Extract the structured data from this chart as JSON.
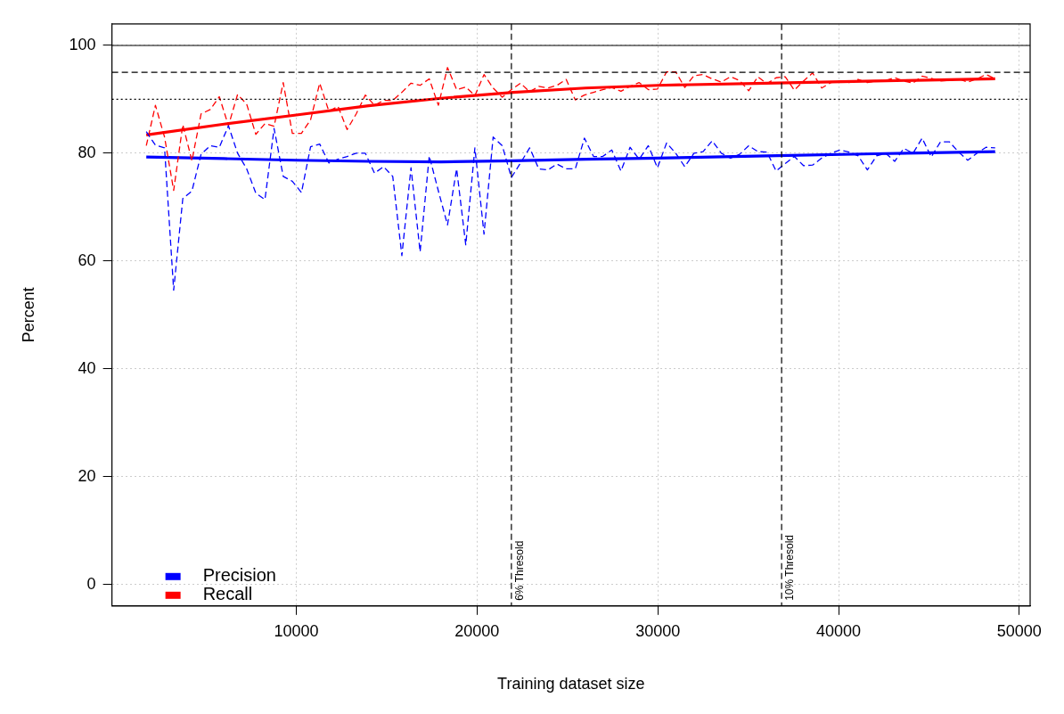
{
  "chart_data": {
    "type": "line",
    "xlabel": "Training dataset size",
    "ylabel": "Percent",
    "xlim": [
      -200,
      50600
    ],
    "ylim": [
      -4,
      104
    ],
    "xticks": [
      10000,
      20000,
      30000,
      40000,
      50000
    ],
    "yticks": [
      0,
      20,
      40,
      60,
      80,
      100
    ],
    "grid": true,
    "legend": "bottom left",
    "marker": "none",
    "x": [
      1700,
      2205,
      2710,
      3215,
      3720,
      4225,
      4730,
      5235,
      5740,
      6245,
      6750,
      7255,
      7760,
      8265,
      8770,
      9275,
      9780,
      10285,
      10790,
      11295,
      11800,
      12305,
      12810,
      13315,
      13820,
      14325,
      14830,
      15335,
      15840,
      16345,
      16850,
      17355,
      17860,
      18365,
      18870,
      19375,
      19880,
      20385,
      20890,
      21395,
      21900,
      22405,
      22910,
      23415,
      23920,
      24425,
      24930,
      25435,
      25940,
      26445,
      26950,
      27455,
      27960,
      28465,
      28970,
      29475,
      29980,
      30485,
      30990,
      31495,
      32000,
      32505,
      33010,
      33515,
      34020,
      34525,
      35030,
      35535,
      36040,
      36545,
      37050,
      37555,
      38060,
      38565,
      39070,
      39575,
      40080,
      40585,
      41090,
      41595,
      42100,
      42605,
      43110,
      43615,
      44120,
      44625,
      45130,
      45635,
      46140,
      46645,
      47150,
      47655,
      48160,
      48665
    ],
    "series": [
      {
        "name": "Precision",
        "color": "#0000ff",
        "line_style": "dashed",
        "values": [
          84.0,
          81.5,
          81.0,
          54.6,
          71.6,
          73.0,
          79.8,
          81.4,
          81.1,
          85.1,
          80.0,
          77.1,
          72.6,
          71.4,
          84.6,
          75.7,
          74.8,
          72.7,
          81.2,
          81.7,
          78.2,
          78.9,
          79.4,
          80.0,
          80.0,
          76.3,
          77.5,
          75.7,
          61.0,
          77.3,
          61.7,
          79.5,
          73.0,
          66.7,
          77.1,
          63.0,
          81.0,
          65.0,
          83.0,
          81.4,
          75.5,
          78.2,
          81.0,
          77.1,
          76.9,
          78.0,
          77.1,
          77.1,
          82.8,
          79.4,
          79.4,
          80.6,
          76.7,
          81.1,
          78.9,
          81.4,
          77.3,
          81.9,
          80.0,
          77.5,
          80.0,
          80.3,
          82.3,
          80.0,
          79.1,
          79.8,
          81.4,
          80.3,
          80.2,
          76.7,
          78.1,
          79.4,
          77.7,
          77.8,
          79.1,
          80.0,
          80.6,
          80.2,
          79.5,
          76.9,
          79.5,
          80.0,
          78.5,
          80.9,
          80.0,
          82.8,
          79.3,
          82.1,
          82.1,
          80.2,
          78.7,
          80.0,
          81.1,
          81.0
        ]
      },
      {
        "name": "Recall",
        "color": "#ff0000",
        "line_style": "dashed",
        "values": [
          81.4,
          88.9,
          83.0,
          73.1,
          85.3,
          78.6,
          87.3,
          88.1,
          90.5,
          85.1,
          90.9,
          89.1,
          83.5,
          85.5,
          85.0,
          93.1,
          83.7,
          83.7,
          86.2,
          93.0,
          87.8,
          88.7,
          84.4,
          87.3,
          90.8,
          88.9,
          89.8,
          89.8,
          91.3,
          93.0,
          92.6,
          93.8,
          88.9,
          95.9,
          91.8,
          92.3,
          90.7,
          94.6,
          92.1,
          90.4,
          91.8,
          93.0,
          91.4,
          92.4,
          92.1,
          92.6,
          93.7,
          89.9,
          90.8,
          91.3,
          91.8,
          92.2,
          91.5,
          92.4,
          93.1,
          91.8,
          91.9,
          95.1,
          95.1,
          92.2,
          94.4,
          94.6,
          93.8,
          93.2,
          94.2,
          93.5,
          91.6,
          94.2,
          92.9,
          94.0,
          94.2,
          91.7,
          93.4,
          94.9,
          92.1,
          93.1,
          93.4,
          93.1,
          93.7,
          93.1,
          93.4,
          93.5,
          94.0,
          93.4,
          93.0,
          94.3,
          93.9,
          93.4,
          93.5,
          93.8,
          93.2,
          93.8,
          94.6,
          93.8
        ]
      },
      {
        "color": "#0000ff",
        "line_style": "solid",
        "x": [
          1700,
          6000,
          10000,
          14000,
          18000,
          22000,
          26000,
          30000,
          36000,
          42000,
          48665
        ],
        "values": [
          79.3,
          79.0,
          78.7,
          78.5,
          78.4,
          78.6,
          78.9,
          79.1,
          79.5,
          79.9,
          80.3
        ]
      },
      {
        "color": "#ff0000",
        "line_style": "solid",
        "x": [
          1700,
          6000,
          10000,
          14000,
          18000,
          22000,
          26000,
          30000,
          36000,
          42000,
          48665
        ],
        "values": [
          83.4,
          85.4,
          87.1,
          88.8,
          90.2,
          91.3,
          92.1,
          92.6,
          93.0,
          93.4,
          93.8
        ]
      }
    ],
    "ref_lines": [
      {
        "axis": "y",
        "value": 100,
        "line_style": "solid"
      },
      {
        "axis": "y",
        "value": 95,
        "line_style": "dashed"
      },
      {
        "axis": "y",
        "value": 90,
        "line_style": "dotted"
      },
      {
        "axis": "x",
        "value": 21900,
        "label": "6% Thresold",
        "line_style": "dashed"
      },
      {
        "axis": "x",
        "value": 36850,
        "label": "10% Thresold",
        "line_style": "dashed"
      }
    ]
  }
}
